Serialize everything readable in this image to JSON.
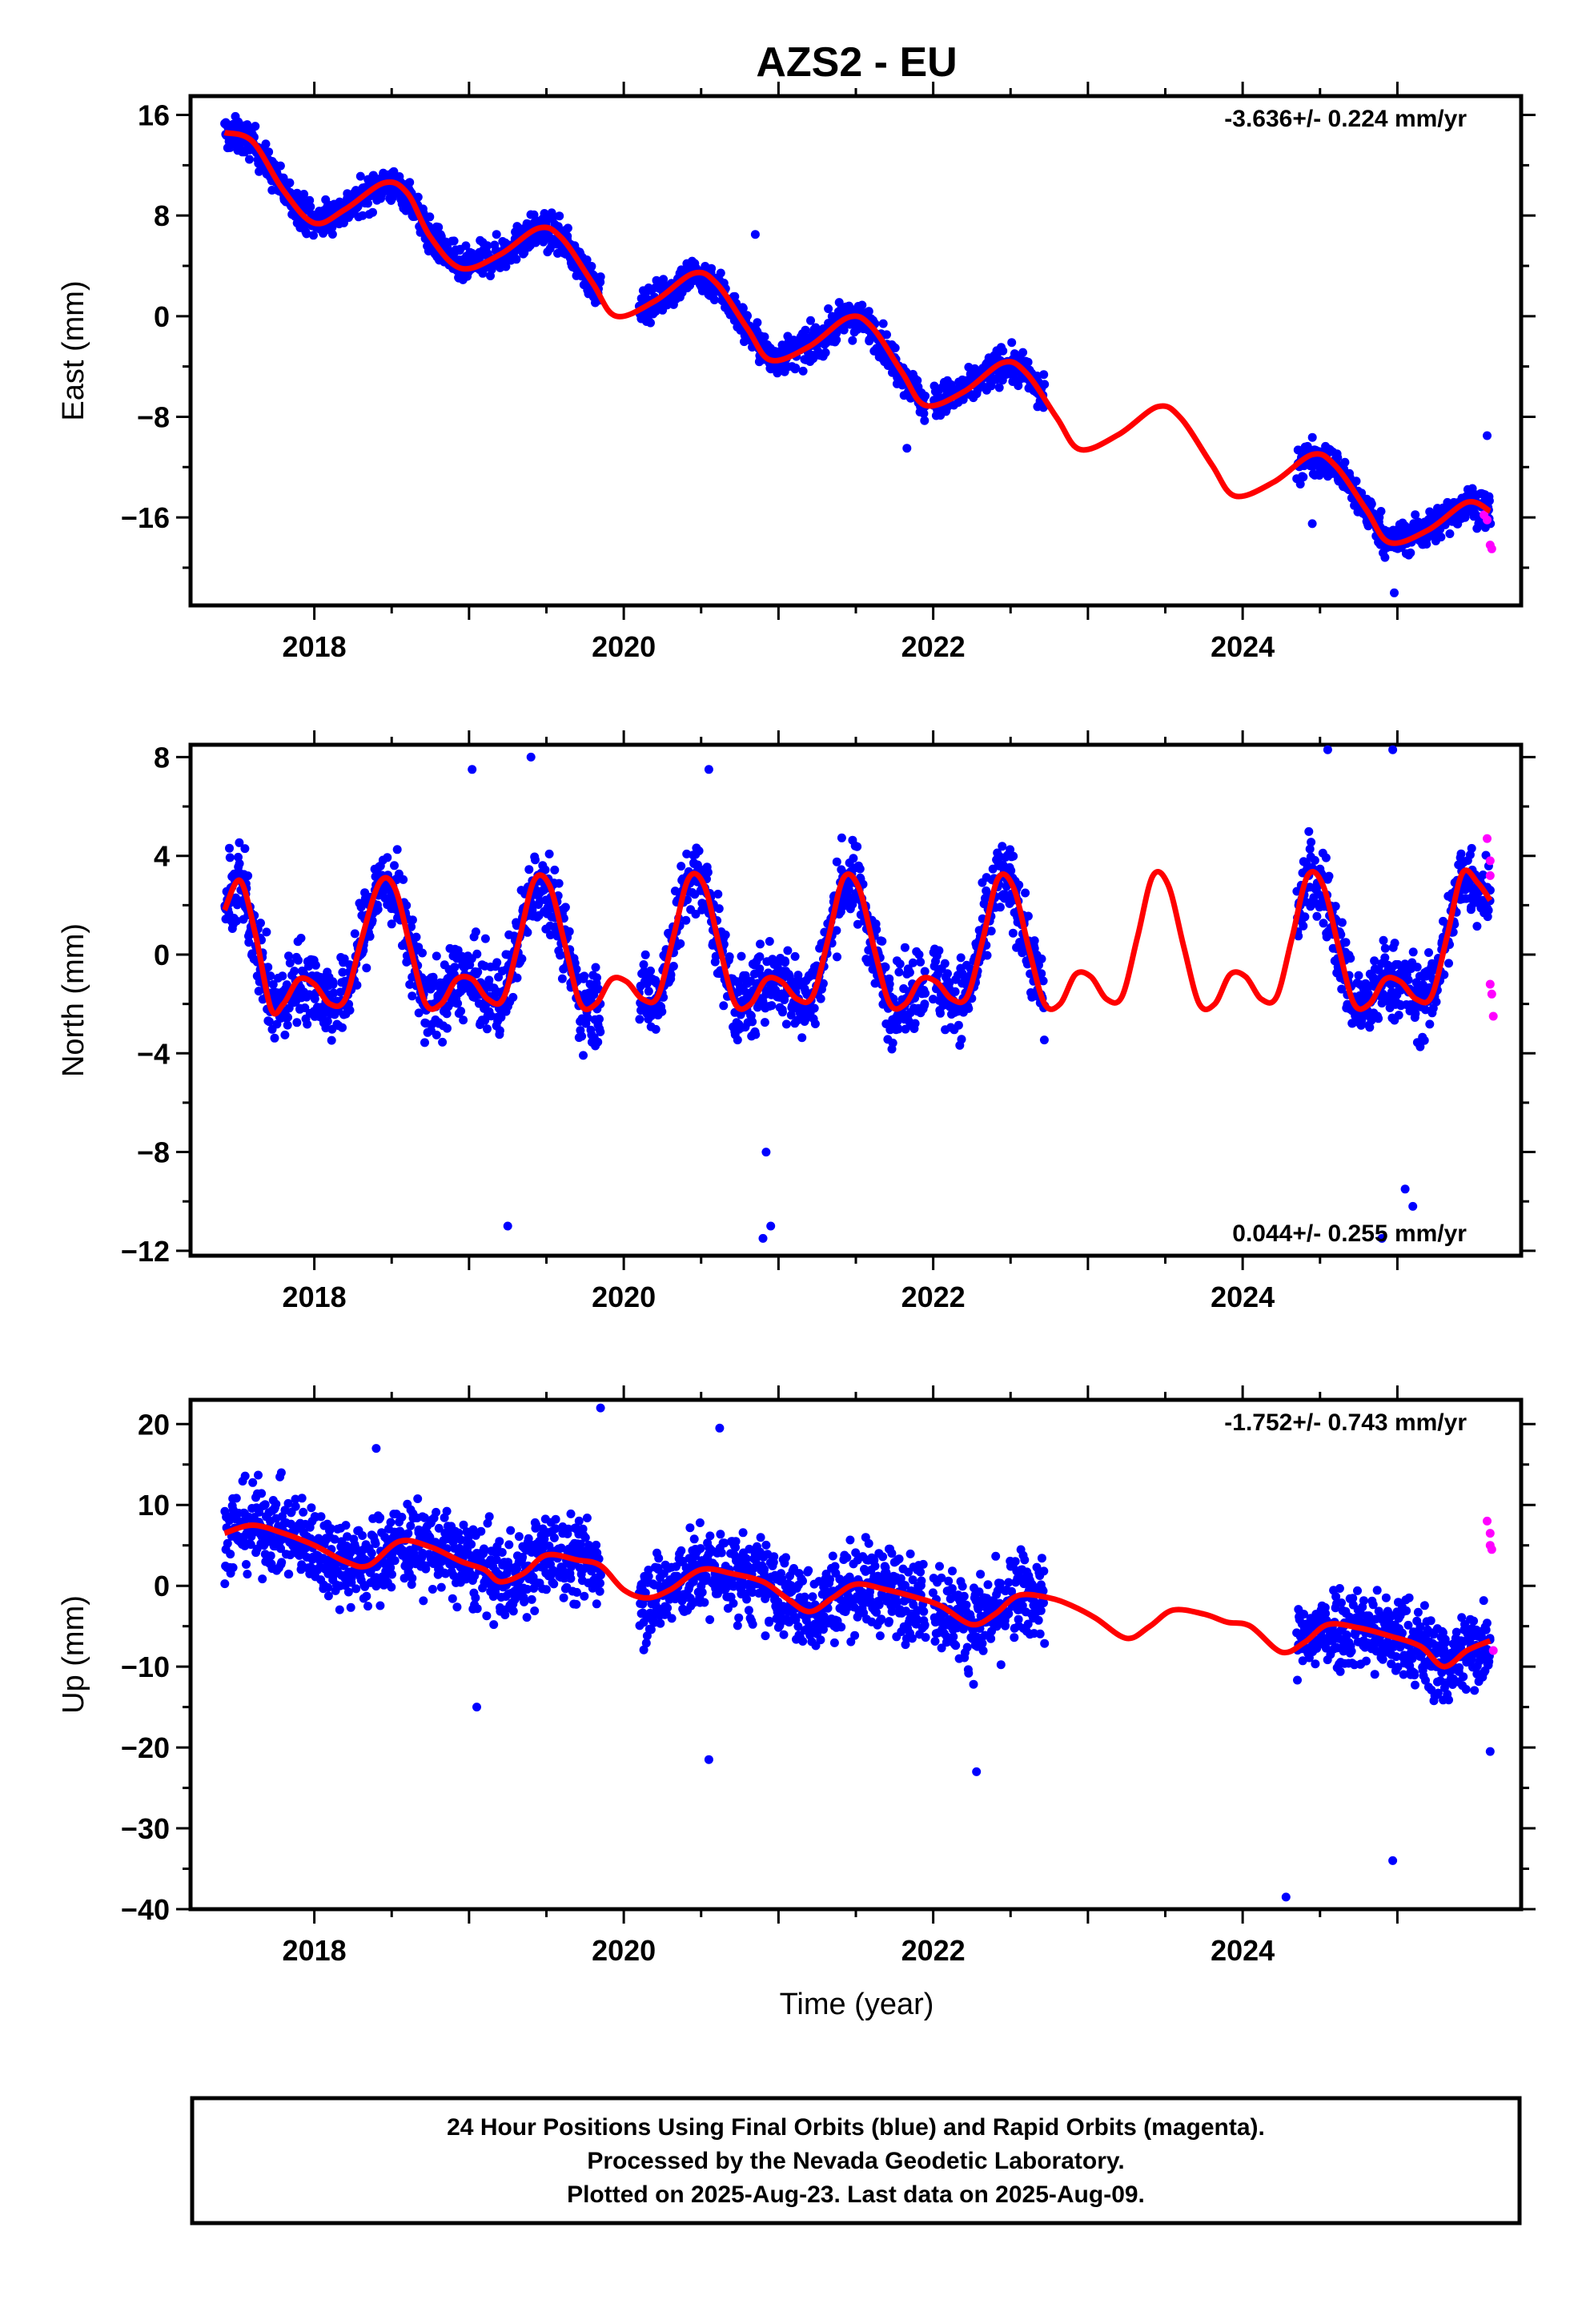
{
  "title": "AZS2 - EU",
  "xlabel": "Time (year)",
  "footer": {
    "line1": "24 Hour Positions Using Final Orbits (blue) and Rapid Orbits (magenta).",
    "line2": "Processed by the Nevada Geodetic Laboratory.",
    "line3": "Plotted on 2025-Aug-23. Last data on 2025-Aug-09."
  },
  "colors": {
    "final_orbits": "#0000ff",
    "rapid_orbits": "#ff00ff",
    "model_fit": "#ff0000"
  },
  "chart_data": [
    {
      "type": "scatter",
      "ylabel": "East (mm)",
      "rate_label": "-3.636+/- 0.224 mm/yr",
      "xlim": [
        2017.2,
        2025.8
      ],
      "ylim": [
        -23,
        17.5
      ],
      "yticks": [
        "16",
        "8",
        "0",
        "-8",
        "-16"
      ],
      "xticks": [
        "2018",
        "2020",
        "2022",
        "2024"
      ],
      "grid": false,
      "fit": {
        "name": "",
        "x": [
          2017.42,
          2017.6,
          2017.8,
          2018.0,
          2018.2,
          2018.45,
          2018.6,
          2018.75,
          2018.95,
          2019.2,
          2019.45,
          2019.6,
          2019.8,
          2019.95,
          2020.2,
          2020.45,
          2020.6,
          2020.8,
          2020.95,
          2021.2,
          2021.45,
          2021.6,
          2021.8,
          2021.95,
          2022.2,
          2022.45,
          2022.6,
          2022.8,
          2022.95,
          2023.2,
          2023.45,
          2023.6,
          2023.8,
          2023.95,
          2024.2,
          2024.45,
          2024.6,
          2024.8,
          2024.95,
          2025.2,
          2025.45,
          2025.6
        ],
        "y": [
          14.6,
          13.9,
          10.0,
          7.4,
          8.5,
          10.6,
          9.8,
          6.3,
          3.8,
          4.9,
          7.0,
          6.2,
          2.6,
          0.0,
          1.2,
          3.4,
          2.6,
          -1.0,
          -3.5,
          -2.4,
          -0.1,
          -0.8,
          -4.5,
          -7.1,
          -6.0,
          -3.7,
          -4.5,
          -8.1,
          -10.6,
          -9.4,
          -7.2,
          -8.1,
          -11.8,
          -14.3,
          -13.2,
          -11.0,
          -11.9,
          -15.4,
          -18.0,
          -17.0,
          -14.8,
          -15.5
        ]
      },
      "final_segments": [
        [
          2017.42,
          2017.8
        ],
        [
          2017.8,
          2018.85
        ],
        [
          2018.85,
          2019.85
        ],
        [
          2020.1,
          2020.85
        ],
        [
          2020.85,
          2021.95
        ],
        [
          2022.0,
          2022.72
        ],
        [
          2024.35,
          2024.7
        ],
        [
          2024.7,
          2025.6
        ]
      ],
      "rapid": {
        "x": [
          2025.56,
          2025.58,
          2025.6,
          2025.61
        ],
        "y": [
          -15.8,
          -16.2,
          -18.2,
          -18.5
        ]
      },
      "outliers": {
        "x": [
          2020.85,
          2021.83,
          2024.98,
          2025.58,
          2024.45
        ],
        "y": [
          6.5,
          -10.5,
          -22.0,
          -9.5,
          -16.5
        ]
      }
    },
    {
      "type": "scatter",
      "ylabel": "North (mm)",
      "rate_label": "0.044+/- 0.255 mm/yr",
      "xlim": [
        2017.2,
        2025.8
      ],
      "ylim": [
        -12.2,
        8.5
      ],
      "yticks": [
        "8",
        "4",
        "0",
        "-4",
        "-8",
        "-12"
      ],
      "xticks": [
        "2018",
        "2020",
        "2022",
        "2024"
      ],
      "grid": false,
      "fit": {
        "name": "",
        "x": [
          2017.42,
          2017.52,
          2017.62,
          2017.72,
          2017.8,
          2017.9,
          2018.0,
          2018.1,
          2018.2,
          2018.3,
          2018.42,
          2018.52,
          2018.62,
          2018.72,
          2018.82,
          2018.92,
          2019.02,
          2019.12,
          2019.22,
          2019.32,
          2019.42,
          2019.52,
          2019.62,
          2019.72,
          2019.82,
          2019.92,
          2020.02,
          2020.12,
          2020.22,
          2020.32,
          2020.42,
          2020.52,
          2020.62,
          2020.72,
          2020.82,
          2020.92,
          2021.02,
          2021.12,
          2021.22,
          2021.32,
          2021.42,
          2021.52,
          2021.62,
          2021.72,
          2021.82,
          2021.92,
          2022.02,
          2022.12,
          2022.22,
          2022.32,
          2022.42,
          2022.52,
          2022.62,
          2022.72,
          2022.82,
          2022.92,
          2023.02,
          2023.12,
          2023.22,
          2023.32,
          2023.42,
          2023.52,
          2023.62,
          2023.72,
          2023.82,
          2023.92,
          2024.02,
          2024.12,
          2024.22,
          2024.32,
          2024.42,
          2024.52,
          2024.62,
          2024.72,
          2024.82,
          2024.92,
          2025.02,
          2025.12,
          2025.22,
          2025.32,
          2025.42,
          2025.52,
          2025.6
        ],
        "y": [
          1.8,
          3.0,
          0.8,
          -2.2,
          -2.0,
          -1.0,
          -1.2,
          -2.0,
          -1.8,
          0.5,
          2.9,
          2.7,
          0.3,
          -2.0,
          -2.0,
          -1.0,
          -1.0,
          -1.8,
          -1.8,
          0.5,
          3.0,
          2.8,
          0.4,
          -2.0,
          -2.0,
          -1.0,
          -1.1,
          -1.8,
          -1.7,
          0.7,
          3.1,
          2.8,
          0.3,
          -2.0,
          -2.0,
          -1.0,
          -1.1,
          -1.8,
          -1.7,
          0.6,
          3.1,
          2.7,
          0.2,
          -2.0,
          -2.0,
          -1.0,
          -1.1,
          -1.8,
          -1.7,
          0.6,
          3.1,
          2.7,
          0.2,
          -2.0,
          -2.0,
          -0.8,
          -0.9,
          -1.8,
          -1.7,
          0.7,
          3.2,
          2.8,
          0.3,
          -2.0,
          -2.0,
          -0.8,
          -0.9,
          -1.8,
          -1.7,
          0.7,
          3.2,
          2.8,
          0.3,
          -2.0,
          -2.0,
          -1.0,
          -1.1,
          -1.8,
          -1.7,
          0.7,
          3.3,
          2.9,
          2.2
        ]
      },
      "final_segments": [
        [
          2017.42,
          2019.85
        ],
        [
          2020.1,
          2021.95
        ],
        [
          2022.0,
          2022.72
        ],
        [
          2024.35,
          2025.6
        ]
      ],
      "rapid": {
        "x": [
          2025.58,
          2025.6,
          2025.6,
          2025.61,
          2025.62,
          2025.6
        ],
        "y": [
          4.7,
          3.8,
          -1.2,
          -1.6,
          -2.5,
          3.2
        ]
      },
      "outliers": {
        "x": [
          2019.02,
          2019.25,
          2019.4,
          2020.55,
          2020.9,
          2020.95,
          2024.55,
          2024.97,
          2024.9,
          2025.05,
          2025.1,
          2020.92
        ],
        "y": [
          7.5,
          -11.0,
          8.0,
          7.5,
          -11.5,
          -11.0,
          8.3,
          8.4,
          -11.5,
          -9.5,
          -10.2,
          -8.0
        ]
      }
    },
    {
      "type": "scatter",
      "ylabel": "Up (mm)",
      "rate_label": "-1.752+/- 0.743 mm/yr",
      "xlim": [
        2017.2,
        2025.8
      ],
      "ylim": [
        -40,
        23
      ],
      "yticks": [
        "20",
        "10",
        "0",
        "-10",
        "-20",
        "-30",
        "-40"
      ],
      "xticks": [
        "2018",
        "2020",
        "2022",
        "2024"
      ],
      "grid": false,
      "fit": {
        "name": "",
        "x": [
          2017.42,
          2017.6,
          2017.8,
          2018.0,
          2018.2,
          2018.35,
          2018.55,
          2018.75,
          2018.95,
          2019.1,
          2019.2,
          2019.35,
          2019.5,
          2019.7,
          2019.85,
          2020.0,
          2020.15,
          2020.3,
          2020.5,
          2020.7,
          2020.9,
          2021.05,
          2021.2,
          2021.35,
          2021.5,
          2021.7,
          2021.9,
          2022.05,
          2022.25,
          2022.4,
          2022.55,
          2022.75,
          2022.9,
          2023.05,
          2023.25,
          2023.4,
          2023.55,
          2023.75,
          2023.9,
          2024.05,
          2024.25,
          2024.4,
          2024.55,
          2024.75,
          2024.95,
          2025.15,
          2025.3,
          2025.45,
          2025.6
        ],
        "y": [
          6.5,
          7.5,
          6.5,
          5.0,
          3.0,
          2.5,
          5.5,
          4.8,
          3.0,
          2.0,
          0.5,
          1.5,
          3.8,
          3.2,
          2.5,
          -0.5,
          -1.5,
          -0.5,
          2.0,
          1.5,
          0.5,
          -1.5,
          -3.2,
          -1.5,
          0.2,
          -0.5,
          -1.5,
          -2.5,
          -4.8,
          -3.5,
          -1.2,
          -1.5,
          -2.5,
          -4.0,
          -6.5,
          -5.0,
          -3.0,
          -3.5,
          -4.5,
          -5.0,
          -8.2,
          -7.0,
          -4.8,
          -5.2,
          -6.2,
          -7.5,
          -10.0,
          -8.0,
          -6.8
        ]
      },
      "final_segments": [
        [
          2017.42,
          2019.85
        ],
        [
          2020.1,
          2021.95
        ],
        [
          2022.0,
          2022.72
        ],
        [
          2024.35,
          2025.6
        ]
      ],
      "rapid": {
        "x": [
          2025.58,
          2025.6,
          2025.6,
          2025.61,
          2025.62
        ],
        "y": [
          8.0,
          6.5,
          5.0,
          4.5,
          -8.0
        ]
      },
      "outliers": {
        "x": [
          2019.85,
          2020.55,
          2020.62,
          2022.28,
          2024.28,
          2024.97,
          2025.6,
          2019.05,
          2018.4
        ],
        "y": [
          22.0,
          -21.5,
          19.5,
          -23.0,
          -38.5,
          -34.0,
          -20.5,
          -15.0,
          17.0
        ]
      }
    }
  ]
}
